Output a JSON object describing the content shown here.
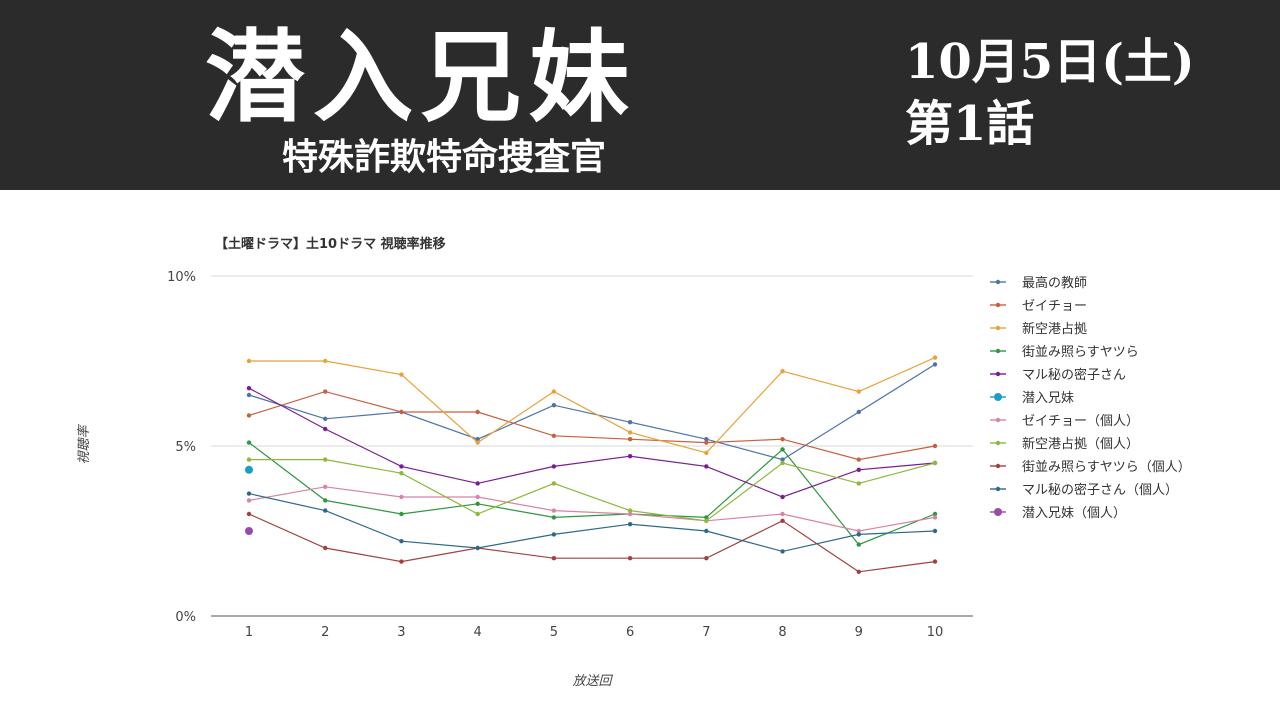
{
  "banner": {
    "title": "潜入兄妹",
    "subtitle": "特殊詐欺特命捜査官",
    "date": "10月5日(土)",
    "episode": "第1話"
  },
  "chart_data": {
    "type": "line",
    "title": "【土曜ドラマ】土10ドラマ 視聴率推移",
    "xlabel": "放送回",
    "ylabel": "視聴率",
    "x": [
      1,
      2,
      3,
      4,
      5,
      6,
      7,
      8,
      9,
      10
    ],
    "ylim": [
      0,
      10
    ],
    "yticks": [
      "0%",
      "5%",
      "10%"
    ],
    "grid": true,
    "legend_position": "right",
    "series": [
      {
        "name": "最高の教師",
        "color": "#4e73a9",
        "values": [
          6.5,
          5.8,
          6.0,
          5.2,
          6.2,
          5.7,
          5.2,
          4.6,
          6.0,
          7.4
        ]
      },
      {
        "name": "ゼイチョー",
        "color": "#c8603f",
        "values": [
          5.9,
          6.6,
          6.0,
          6.0,
          5.3,
          5.2,
          5.1,
          5.2,
          4.6,
          5.0
        ]
      },
      {
        "name": "新空港占拠",
        "color": "#e8a23a",
        "values": [
          7.5,
          7.5,
          7.1,
          5.1,
          6.6,
          5.4,
          4.8,
          7.2,
          6.6,
          7.6
        ]
      },
      {
        "name": "街並み照らすヤツら",
        "color": "#2e9740",
        "values": [
          5.1,
          3.4,
          3.0,
          3.3,
          2.9,
          3.0,
          2.9,
          4.9,
          2.1,
          3.0
        ]
      },
      {
        "name": "マル秘の密子さん",
        "color": "#7b1c8f",
        "values": [
          6.7,
          5.5,
          4.4,
          3.9,
          4.4,
          4.7,
          4.4,
          3.5,
          4.3,
          4.5
        ]
      },
      {
        "name": "潜入兄妹",
        "color": "#1a9fc4",
        "big": true,
        "values": [
          4.3,
          null,
          null,
          null,
          null,
          null,
          null,
          null,
          null,
          null
        ]
      },
      {
        "name": "ゼイチョー（個人）",
        "color": "#d784a6",
        "values": [
          3.4,
          3.8,
          3.5,
          3.5,
          3.1,
          3.0,
          2.8,
          3.0,
          2.5,
          2.9
        ]
      },
      {
        "name": "新空港占拠（個人）",
        "color": "#8db83c",
        "values": [
          4.6,
          4.6,
          4.2,
          3.0,
          3.9,
          3.1,
          2.8,
          4.5,
          3.9,
          4.5
        ]
      },
      {
        "name": "街並み照らすヤツら（個人）",
        "color": "#a24040",
        "values": [
          3.0,
          2.0,
          1.6,
          2.0,
          1.7,
          1.7,
          1.7,
          2.8,
          1.3,
          1.6
        ]
      },
      {
        "name": "マル秘の密子さん（個人）",
        "color": "#2c6a8a",
        "values": [
          3.6,
          3.1,
          2.2,
          2.0,
          2.4,
          2.7,
          2.5,
          1.9,
          2.4,
          2.5
        ]
      },
      {
        "name": "潜入兄妹（個人）",
        "color": "#9a4aa8",
        "big": true,
        "values": [
          2.5,
          null,
          null,
          null,
          null,
          null,
          null,
          null,
          null,
          null
        ]
      }
    ]
  }
}
